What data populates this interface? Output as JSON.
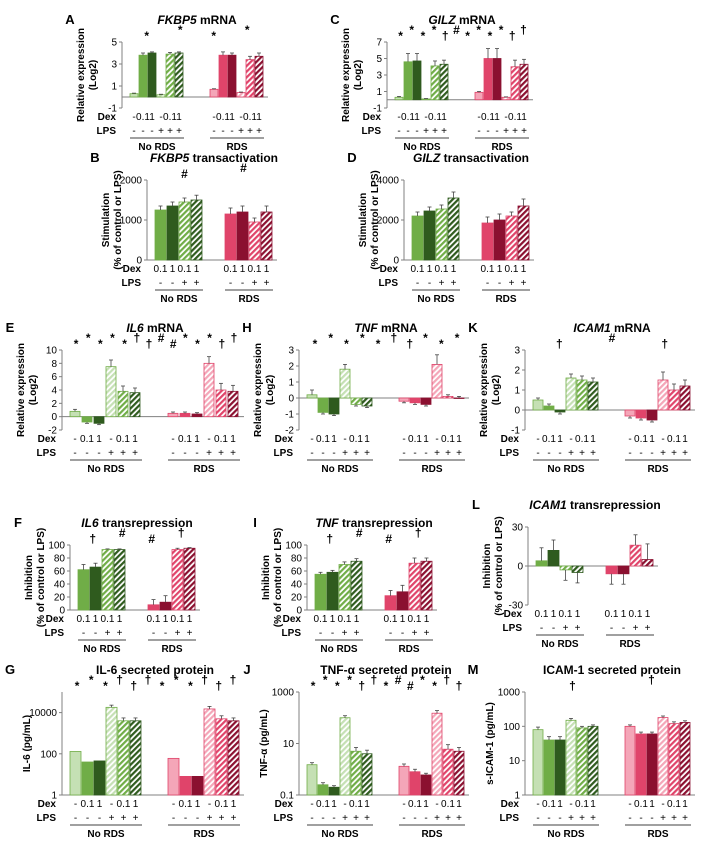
{
  "figure": {
    "row_labels": {
      "dex": "Dex",
      "lps": "LPS"
    },
    "colors": {
      "nords": [
        "#c5e0b4",
        "#70ad47",
        "#4e8b30",
        "#2f5b1e"
      ],
      "rds": [
        "#f4a6b8",
        "#e0446a",
        "#c0143c",
        "#8b1030"
      ],
      "axis": "#808080",
      "text": "#000000"
    }
  },
  "chart_data": [
    {
      "id": "A",
      "type": "bar",
      "title": "FKBP5 mRNA",
      "italic_prefix": "FKBP5",
      "title_rest": " mRNA",
      "ylabel": [
        "Relative expression",
        "(Log2)"
      ],
      "ylim": [
        -1,
        5
      ],
      "yticks": [
        -1,
        1,
        3,
        5
      ],
      "scale": "linear",
      "groups": [
        "No RDS",
        "RDS"
      ],
      "dex": [
        "-",
        "0.1",
        "1",
        "-",
        "0.1",
        "1"
      ],
      "lps": [
        "-",
        "-",
        "-",
        "+",
        "+",
        "+"
      ],
      "series": [
        {
          "name": "No RDS",
          "values": [
            0.3,
            3.8,
            4.0,
            0.2,
            3.9,
            4.0
          ],
          "errors": [
            0.05,
            0.2,
            0.1,
            0.05,
            0.15,
            0.1
          ]
        },
        {
          "name": "RDS",
          "values": [
            0.7,
            3.8,
            3.8,
            0.4,
            3.4,
            3.7
          ],
          "errors": [
            0.05,
            0.3,
            0.2,
            0.05,
            0.3,
            0.3
          ]
        }
      ],
      "annotations": [
        "*",
        "*",
        "*",
        "*"
      ]
    },
    {
      "id": "C",
      "type": "bar",
      "title": "GILZ mRNA",
      "italic_prefix": "GILZ",
      "title_rest": " mRNA",
      "ylabel": [
        "Relative expression",
        "(Log2)"
      ],
      "ylim": [
        -1,
        7
      ],
      "yticks": [
        -1,
        1,
        3,
        5,
        7
      ],
      "scale": "linear",
      "groups": [
        "No RDS",
        "RDS"
      ],
      "dex": [
        "-",
        "0.1",
        "1",
        "-",
        "0.1",
        "1"
      ],
      "lps": [
        "-",
        "-",
        "-",
        "+",
        "+",
        "+"
      ],
      "series": [
        {
          "name": "No RDS",
          "values": [
            0.3,
            4.6,
            4.7,
            0.1,
            4.1,
            4.3
          ],
          "errors": [
            0.1,
            1.0,
            0.9,
            0.05,
            0.6,
            0.5
          ]
        },
        {
          "name": "RDS",
          "values": [
            0.9,
            5.0,
            5.0,
            0.3,
            4.0,
            4.3
          ],
          "errors": [
            0.1,
            1.2,
            1.2,
            0.05,
            0.8,
            0.6
          ]
        }
      ],
      "annotations": [
        "*",
        "*",
        "*",
        "*",
        "†",
        "#",
        "*",
        "*",
        "*",
        "*",
        "†",
        "†"
      ]
    },
    {
      "id": "B",
      "type": "bar",
      "title": "FKBP5 transactivation",
      "italic_prefix": "FKBP5",
      "title_rest": " transactivation",
      "ylabel": [
        "Stimulation",
        "(% of control or LPS)"
      ],
      "ylim": [
        0,
        2000
      ],
      "yticks": [
        0,
        1000,
        2000
      ],
      "scale": "linear",
      "groups": [
        "No RDS",
        "RDS"
      ],
      "dex": [
        "0.1",
        "1",
        "0.1",
        "1"
      ],
      "lps": [
        "-",
        "-",
        "+",
        "+"
      ],
      "series": [
        {
          "name": "No RDS",
          "values": [
            1250,
            1350,
            1450,
            1500
          ],
          "errors": [
            100,
            100,
            100,
            120
          ]
        },
        {
          "name": "RDS",
          "values": [
            1150,
            1200,
            950,
            1200
          ],
          "errors": [
            150,
            150,
            100,
            150
          ]
        }
      ],
      "annotations": [
        "#",
        "#"
      ]
    },
    {
      "id": "D",
      "type": "bar",
      "title": "GILZ transactivation",
      "italic_prefix": "GILZ",
      "title_rest": " transactivation",
      "ylabel": [
        "Stimulation",
        "(% of control or LPS)"
      ],
      "ylim": [
        0,
        4000
      ],
      "yticks": [
        0,
        2000,
        4000
      ],
      "scale": "linear",
      "groups": [
        "No RDS",
        "RDS"
      ],
      "dex": [
        "0.1",
        "1",
        "0.1",
        "1"
      ],
      "lps": [
        "-",
        "-",
        "+",
        "+"
      ],
      "series": [
        {
          "name": "No RDS",
          "values": [
            2200,
            2450,
            2550,
            3100
          ],
          "errors": [
            200,
            200,
            200,
            300
          ]
        },
        {
          "name": "RDS",
          "values": [
            1850,
            2000,
            2200,
            2700
          ],
          "errors": [
            300,
            300,
            200,
            350
          ]
        }
      ],
      "annotations": []
    },
    {
      "id": "E",
      "type": "bar",
      "title": "IL6 mRNA",
      "italic_prefix": "IL6",
      "title_rest": " mRNA",
      "ylabel": [
        "Relative expression",
        "(Log2)"
      ],
      "ylim": [
        -2,
        10
      ],
      "yticks": [
        -2,
        0,
        2,
        4,
        6,
        8,
        10
      ],
      "scale": "linear",
      "groups": [
        "No RDS",
        "RDS"
      ],
      "dex": [
        "-",
        "0.1",
        "1",
        "-",
        "0.1",
        "1"
      ],
      "lps": [
        "-",
        "-",
        "-",
        "+",
        "+",
        "+"
      ],
      "series": [
        {
          "name": "No RDS",
          "values": [
            0.8,
            -0.8,
            -1.0,
            7.5,
            3.8,
            3.6
          ],
          "errors": [
            0.3,
            0.2,
            0.2,
            1.0,
            0.8,
            0.7
          ]
        },
        {
          "name": "RDS",
          "values": [
            0.5,
            0.5,
            0.4,
            8.0,
            4.0,
            3.8
          ],
          "errors": [
            0.2,
            0.2,
            0.2,
            1.0,
            1.0,
            0.9
          ]
        }
      ],
      "annotations": [
        "*",
        "*",
        "*",
        "*",
        "*",
        "†",
        "†",
        "#",
        "#",
        "*",
        "*",
        "*",
        "†",
        "†"
      ]
    },
    {
      "id": "H",
      "type": "bar",
      "title": "TNF mRNA",
      "italic_prefix": "TNF",
      "title_rest": " mRNA",
      "ylabel": [
        "Relative expression",
        "(Log2)"
      ],
      "ylim": [
        -2,
        3
      ],
      "yticks": [
        -2,
        -1,
        0,
        1,
        2,
        3
      ],
      "scale": "linear",
      "groups": [
        "No RDS",
        "RDS"
      ],
      "dex": [
        "-",
        "0.1",
        "1",
        "-",
        "0.1",
        "1"
      ],
      "lps": [
        "-",
        "-",
        "-",
        "+",
        "+",
        "+"
      ],
      "series": [
        {
          "name": "No RDS",
          "values": [
            0.2,
            -0.9,
            -1.0,
            1.8,
            -0.4,
            -0.5
          ],
          "errors": [
            0.3,
            0.1,
            0.1,
            0.3,
            0.1,
            0.1
          ]
        },
        {
          "name": "RDS",
          "values": [
            -0.2,
            -0.3,
            -0.4,
            2.1,
            0.1,
            0.0
          ],
          "errors": [
            0.1,
            0.1,
            0.1,
            0.6,
            0.1,
            0.1
          ]
        }
      ],
      "annotations": [
        "*",
        "*",
        "*",
        "*",
        "*",
        "†",
        "†",
        "*",
        "*",
        "*"
      ]
    },
    {
      "id": "K",
      "type": "bar",
      "title": "ICAM1 mRNA",
      "italic_prefix": "ICAM1",
      "title_rest": " mRNA",
      "ylabel": [
        "Relative expression",
        "(Log2)"
      ],
      "ylim": [
        -1,
        3
      ],
      "yticks": [
        -1,
        0,
        1,
        2,
        3
      ],
      "scale": "linear",
      "groups": [
        "No RDS",
        "RDS"
      ],
      "dex": [
        "-",
        "0.1",
        "1",
        "-",
        "0.1",
        "1"
      ],
      "lps": [
        "-",
        "-",
        "-",
        "+",
        "+",
        "+"
      ],
      "series": [
        {
          "name": "No RDS",
          "values": [
            0.5,
            0.2,
            -0.1,
            1.6,
            1.5,
            1.4
          ],
          "errors": [
            0.1,
            0.1,
            0.1,
            0.2,
            0.2,
            0.2
          ]
        },
        {
          "name": "RDS",
          "values": [
            -0.3,
            -0.4,
            -0.5,
            1.5,
            1.0,
            1.2
          ],
          "errors": [
            0.1,
            0.1,
            0.1,
            0.4,
            0.3,
            0.3
          ]
        }
      ],
      "annotations": [
        "†",
        "#",
        "†"
      ]
    },
    {
      "id": "F",
      "type": "bar",
      "title": "IL6 transrepression",
      "italic_prefix": "IL6",
      "title_rest": " transrepression",
      "ylabel": [
        "Inhibition",
        "(% of control or LPS)"
      ],
      "ylim": [
        0,
        100
      ],
      "yticks": [
        0,
        20,
        40,
        60,
        80,
        100
      ],
      "scale": "linear",
      "groups": [
        "No RDS",
        "RDS"
      ],
      "dex": [
        "0.1",
        "1",
        "0.1",
        "1"
      ],
      "lps": [
        "-",
        "-",
        "+",
        "+"
      ],
      "series": [
        {
          "name": "No RDS",
          "values": [
            62,
            66,
            93,
            93
          ],
          "errors": [
            8,
            6,
            1,
            1
          ]
        },
        {
          "name": "RDS",
          "values": [
            8,
            12,
            93,
            95
          ],
          "errors": [
            8,
            10,
            2,
            1
          ]
        }
      ],
      "annotations": [
        "†",
        "#",
        "#",
        "†"
      ]
    },
    {
      "id": "I",
      "type": "bar",
      "title": "TNF transrepression",
      "italic_prefix": "TNF",
      "title_rest": " transrepression",
      "ylabel": [
        "Inhibition",
        "(% of control or LPS)"
      ],
      "ylim": [
        0,
        100
      ],
      "yticks": [
        0,
        20,
        40,
        60,
        80,
        100
      ],
      "scale": "linear",
      "groups": [
        "No RDS",
        "RDS"
      ],
      "dex": [
        "0.1",
        "1",
        "0.1",
        "1"
      ],
      "lps": [
        "-",
        "-",
        "+",
        "+"
      ],
      "series": [
        {
          "name": "No RDS",
          "values": [
            55,
            58,
            70,
            75
          ],
          "errors": [
            3,
            3,
            4,
            4
          ]
        },
        {
          "name": "RDS",
          "values": [
            22,
            28,
            72,
            75
          ],
          "errors": [
            8,
            10,
            8,
            5
          ]
        }
      ],
      "annotations": [
        "†",
        "#",
        "#",
        "†"
      ]
    },
    {
      "id": "L",
      "type": "bar",
      "title": "ICAM1 transrepression",
      "italic_prefix": "ICAM1",
      "title_rest": " transrepression",
      "ylabel": [
        "Inhibition",
        "(% of control or LPS)"
      ],
      "ylim": [
        -30,
        30
      ],
      "yticks": [
        -30,
        0,
        30
      ],
      "scale": "linear",
      "groups": [
        "No RDS",
        "RDS"
      ],
      "dex": [
        "0.1",
        "1",
        "0.1",
        "1"
      ],
      "lps": [
        "-",
        "-",
        "+",
        "+"
      ],
      "series": [
        {
          "name": "No RDS",
          "values": [
            4,
            12,
            -3,
            -5
          ],
          "errors": [
            10,
            8,
            8,
            8
          ]
        },
        {
          "name": "RDS",
          "values": [
            -6,
            -6,
            16,
            5
          ],
          "errors": [
            8,
            8,
            8,
            12
          ]
        }
      ],
      "annotations": []
    },
    {
      "id": "G",
      "type": "bar",
      "title": "IL-6 secreted protein",
      "italic_prefix": "",
      "title_rest": "IL-6 secreted protein",
      "ylabel": [
        "IL-6 (pg/mL)"
      ],
      "ylim": [
        1,
        100000
      ],
      "yticks": [
        1,
        100,
        10000
      ],
      "scale": "log",
      "groups": [
        "No RDS",
        "RDS"
      ],
      "dex": [
        "-",
        "0.1",
        "1",
        "-",
        "0.1",
        "1"
      ],
      "lps": [
        "-",
        "-",
        "-",
        "+",
        "+",
        "+"
      ],
      "series": [
        {
          "name": "No RDS",
          "values": [
            130,
            40,
            45,
            18000,
            4000,
            4000
          ],
          "errors": [
            0,
            0,
            0,
            5000,
            1500,
            1500
          ]
        },
        {
          "name": "RDS",
          "values": [
            60,
            8,
            8,
            15000,
            5000,
            4000
          ],
          "errors": [
            0,
            0,
            0,
            5000,
            2000,
            1500
          ]
        }
      ],
      "annotations": [
        "*",
        "*",
        "*",
        "†",
        "†",
        "†",
        "*",
        "*",
        "*",
        "†",
        "†",
        "†"
      ]
    },
    {
      "id": "J",
      "type": "bar",
      "title": "TNF-α secreted protein",
      "italic_prefix": "",
      "title_rest": "TNF-α secreted protein",
      "ylabel": [
        "TNF-α (pg/mL)"
      ],
      "ylim": [
        0.1,
        1000
      ],
      "yticks": [
        0.1,
        10,
        1000
      ],
      "scale": "log",
      "groups": [
        "No RDS",
        "RDS"
      ],
      "dex": [
        "-",
        "0.1",
        "1",
        "-",
        "0.1",
        "1"
      ],
      "lps": [
        "-",
        "-",
        "-",
        "+",
        "+",
        "+"
      ],
      "series": [
        {
          "name": "No RDS",
          "values": [
            1.5,
            0.25,
            0.2,
            100,
            5,
            4
          ],
          "errors": [
            0.3,
            0.05,
            0.03,
            20,
            2,
            1.5
          ]
        },
        {
          "name": "RDS",
          "values": [
            1.3,
            0.8,
            0.6,
            150,
            6,
            5
          ],
          "errors": [
            0.3,
            0.2,
            0.1,
            40,
            3,
            2
          ]
        }
      ],
      "annotations": [
        "*",
        "*",
        "*",
        "*",
        "†",
        "†",
        "*",
        "#",
        "#",
        "*",
        "*",
        "†",
        "†"
      ]
    },
    {
      "id": "M",
      "type": "bar",
      "title": "ICAM-1 secreted protein",
      "italic_prefix": "",
      "title_rest": "ICAM-1 secreted protein",
      "ylabel": [
        "s-ICAM-1 (pg/mL)"
      ],
      "ylim": [
        1,
        1000
      ],
      "yticks": [
        1,
        10,
        100,
        1000
      ],
      "scale": "log",
      "groups": [
        "No RDS",
        "RDS"
      ],
      "dex": [
        "-",
        "0.1",
        "1",
        "-",
        "0.1",
        "1"
      ],
      "lps": [
        "-",
        "-",
        "-",
        "+",
        "+",
        "+"
      ],
      "series": [
        {
          "name": "No RDS",
          "values": [
            80,
            40,
            40,
            150,
            90,
            100
          ],
          "errors": [
            15,
            10,
            10,
            20,
            10,
            10
          ]
        },
        {
          "name": "RDS",
          "values": [
            100,
            60,
            60,
            180,
            120,
            130
          ],
          "errors": [
            10,
            8,
            8,
            20,
            15,
            15
          ]
        }
      ],
      "annotations": [
        "†",
        "†"
      ]
    }
  ]
}
